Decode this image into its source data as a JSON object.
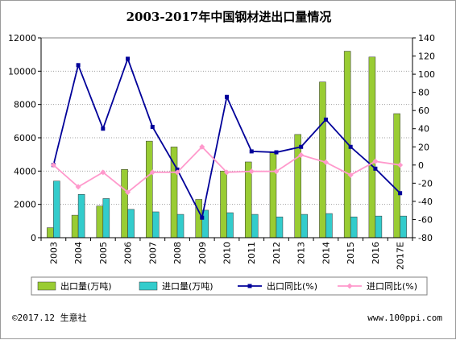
{
  "footer": {
    "copyright": "©2017.12 生意社",
    "website": "www.100ppi.com"
  },
  "colors": {
    "export_bar": "#99cc33",
    "import_bar": "#33cccc",
    "export_line": "#000099",
    "import_line": "#ff99cc"
  },
  "chart_data": {
    "type": "bar",
    "title": "2003-2017年中国钢材进出口量情况",
    "categories": [
      "2003",
      "2004",
      "2005",
      "2006",
      "2007",
      "2008",
      "2009",
      "2010",
      "2011",
      "2012",
      "2013",
      "2014",
      "2015",
      "2016",
      "2017E"
    ],
    "ylim": [
      0,
      12000
    ],
    "y2lim": [
      -80,
      140
    ],
    "yticks": [
      "0",
      "2000",
      "4000",
      "6000",
      "8000",
      "10000",
      "12000"
    ],
    "y2ticks": [
      "-80",
      "-60",
      "-40",
      "-20",
      "0",
      "20",
      "40",
      "60",
      "80",
      "100",
      "120",
      "140"
    ],
    "grid": true,
    "legend_position": "bottom",
    "series": [
      {
        "name": "出口量(万吨)",
        "type": "bar",
        "axis": "left",
        "values": [
          600,
          1350,
          1900,
          4100,
          5800,
          5450,
          2300,
          4000,
          4550,
          5100,
          6200,
          9350,
          11200,
          10850,
          7450
        ]
      },
      {
        "name": "进口量(万吨)",
        "type": "bar",
        "axis": "left",
        "values": [
          3400,
          2600,
          2350,
          1700,
          1550,
          1400,
          1650,
          1500,
          1400,
          1250,
          1400,
          1450,
          1250,
          1300,
          1300
        ]
      },
      {
        "name": "出口同比(%)",
        "type": "line",
        "axis": "right",
        "values": [
          0,
          110,
          40,
          117,
          42,
          -5,
          -58,
          75,
          15,
          14,
          20,
          50,
          20,
          -4,
          -31
        ]
      },
      {
        "name": "进口同比(%)",
        "type": "line",
        "axis": "right",
        "values": [
          0,
          -24,
          -8,
          -30,
          -8,
          -8,
          20,
          -8,
          -7,
          -7,
          11,
          3,
          -11,
          4,
          0
        ]
      }
    ]
  }
}
